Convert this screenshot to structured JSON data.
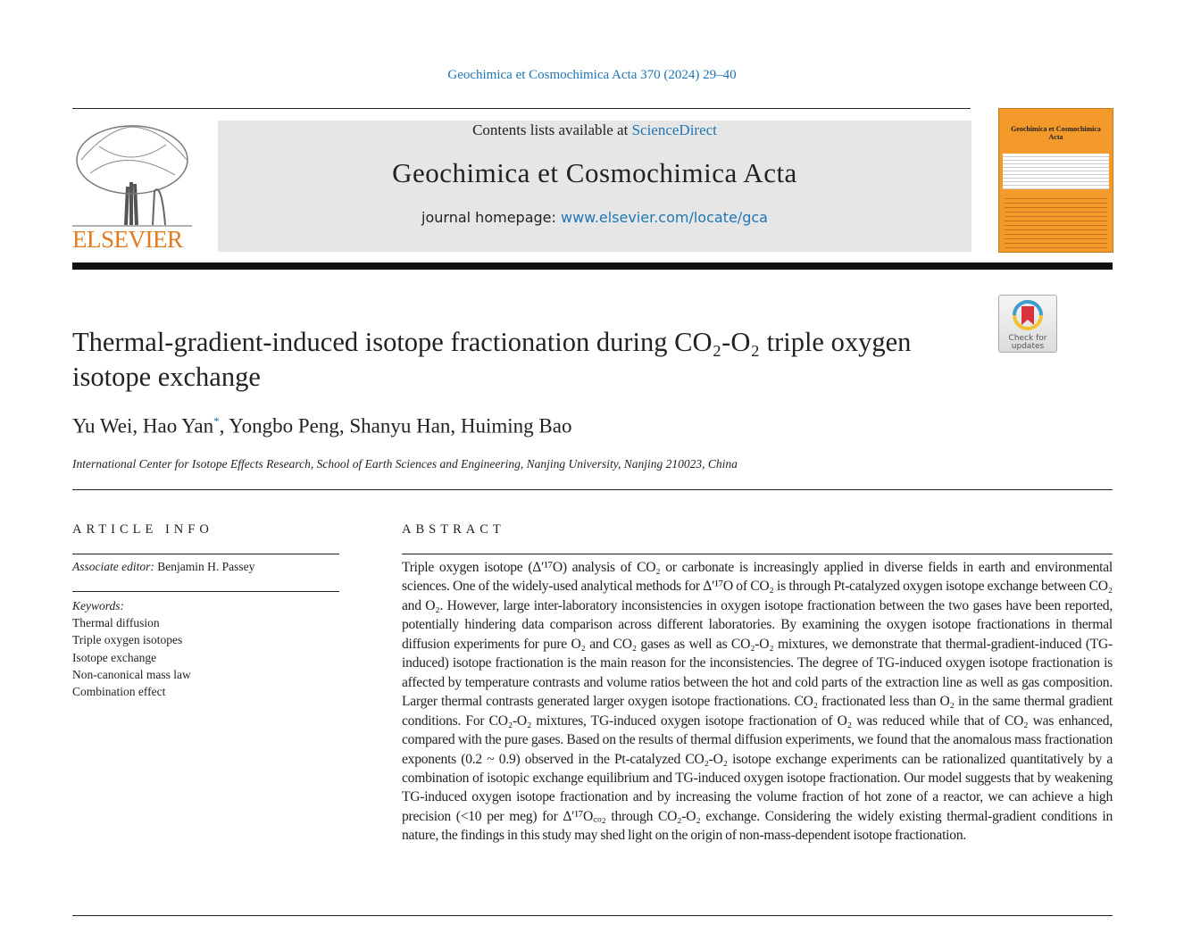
{
  "header": {
    "citation": "Geochimica et Cosmochimica Acta 370 (2024) 29–40",
    "contents_prefix": "Contents lists available at ",
    "contents_link": "ScienceDirect",
    "journal_title": "Geochimica et Cosmochimica Acta",
    "homepage_prefix": "journal homepage: ",
    "homepage_link": "www.elsevier.com/locate/gca",
    "publisher_logo": "ELSEVIER",
    "cover_title": "Geochimica et Cosmochimica Acta",
    "check_updates": "Check for updates",
    "colors": {
      "link": "#1f76b4",
      "elsevier_orange": "#e07b1f",
      "cover_orange": "#f39a2b"
    }
  },
  "article": {
    "title": "Thermal-gradient-induced isotope fractionation during CO₂-O₂ triple oxygen isotope exchange",
    "authors": [
      "Yu Wei",
      "Hao Yan",
      "Yongbo Peng",
      "Shanyu Han",
      "Huiming Bao"
    ],
    "corresponding_mark": "*",
    "affiliation": "International Center for Isotope Effects Research, School of Earth Sciences and Engineering, Nanjing University, Nanjing 210023, China"
  },
  "article_info": {
    "heading": "ARTICLE INFO",
    "editor_label": "Associate editor:",
    "editor_name": " Benjamin H. Passey",
    "keywords_label": "Keywords:",
    "keywords": [
      "Thermal diffusion",
      "Triple oxygen isotopes",
      "Isotope exchange",
      "Non-canonical mass law",
      "Combination effect"
    ]
  },
  "abstract": {
    "heading": "ABSTRACT",
    "text": "Triple oxygen isotope (Δ′¹⁷O) analysis of CO₂ or carbonate is increasingly applied in diverse fields in earth and environmental sciences. One of the widely-used analytical methods for Δ′¹⁷O of CO₂ is through Pt-catalyzed oxygen isotope exchange between CO₂ and O₂. However, large inter-laboratory inconsistencies in oxygen isotope fractionation between the two gases have been reported, potentially hindering data comparison across different laboratories. By examining the oxygen isotope fractionations in thermal diffusion experiments for pure O₂ and CO₂ gases as well as CO₂-O₂ mixtures, we demonstrate that thermal-gradient-induced (TG-induced) isotope fractionation is the main reason for the inconsistencies. The degree of TG-induced oxygen isotope fractionation is affected by temperature contrasts and volume ratios between the hot and cold parts of the extraction line as well as gas composition. Larger thermal contrasts generated larger oxygen isotope fractionations. CO₂ fractionated less than O₂ in the same thermal gradient conditions. For CO₂-O₂ mixtures, TG-induced oxygen isotope fractionation of O₂ was reduced while that of CO₂ was enhanced, compared with the pure gases. Based on the results of thermal diffusion experiments, we found that the anomalous mass fractionation exponents (0.2 ~ 0.9) observed in the Pt-catalyzed CO₂-O₂ isotope exchange experiments can be rationalized quantitatively by a combination of isotopic exchange equilibrium and TG-induced oxygen isotope fractionation. Our model suggests that by weakening TG-induced oxygen isotope fractionation and by increasing the volume fraction of hot zone of a reactor, we can achieve a high precision (<10 per meg) for Δ′¹⁷O꜀ₒ₂ through CO₂-O₂ exchange. Considering the widely existing thermal-gradient conditions in nature, the findings in this study may shed light on the origin of non-mass-dependent isotope fractionation."
  }
}
